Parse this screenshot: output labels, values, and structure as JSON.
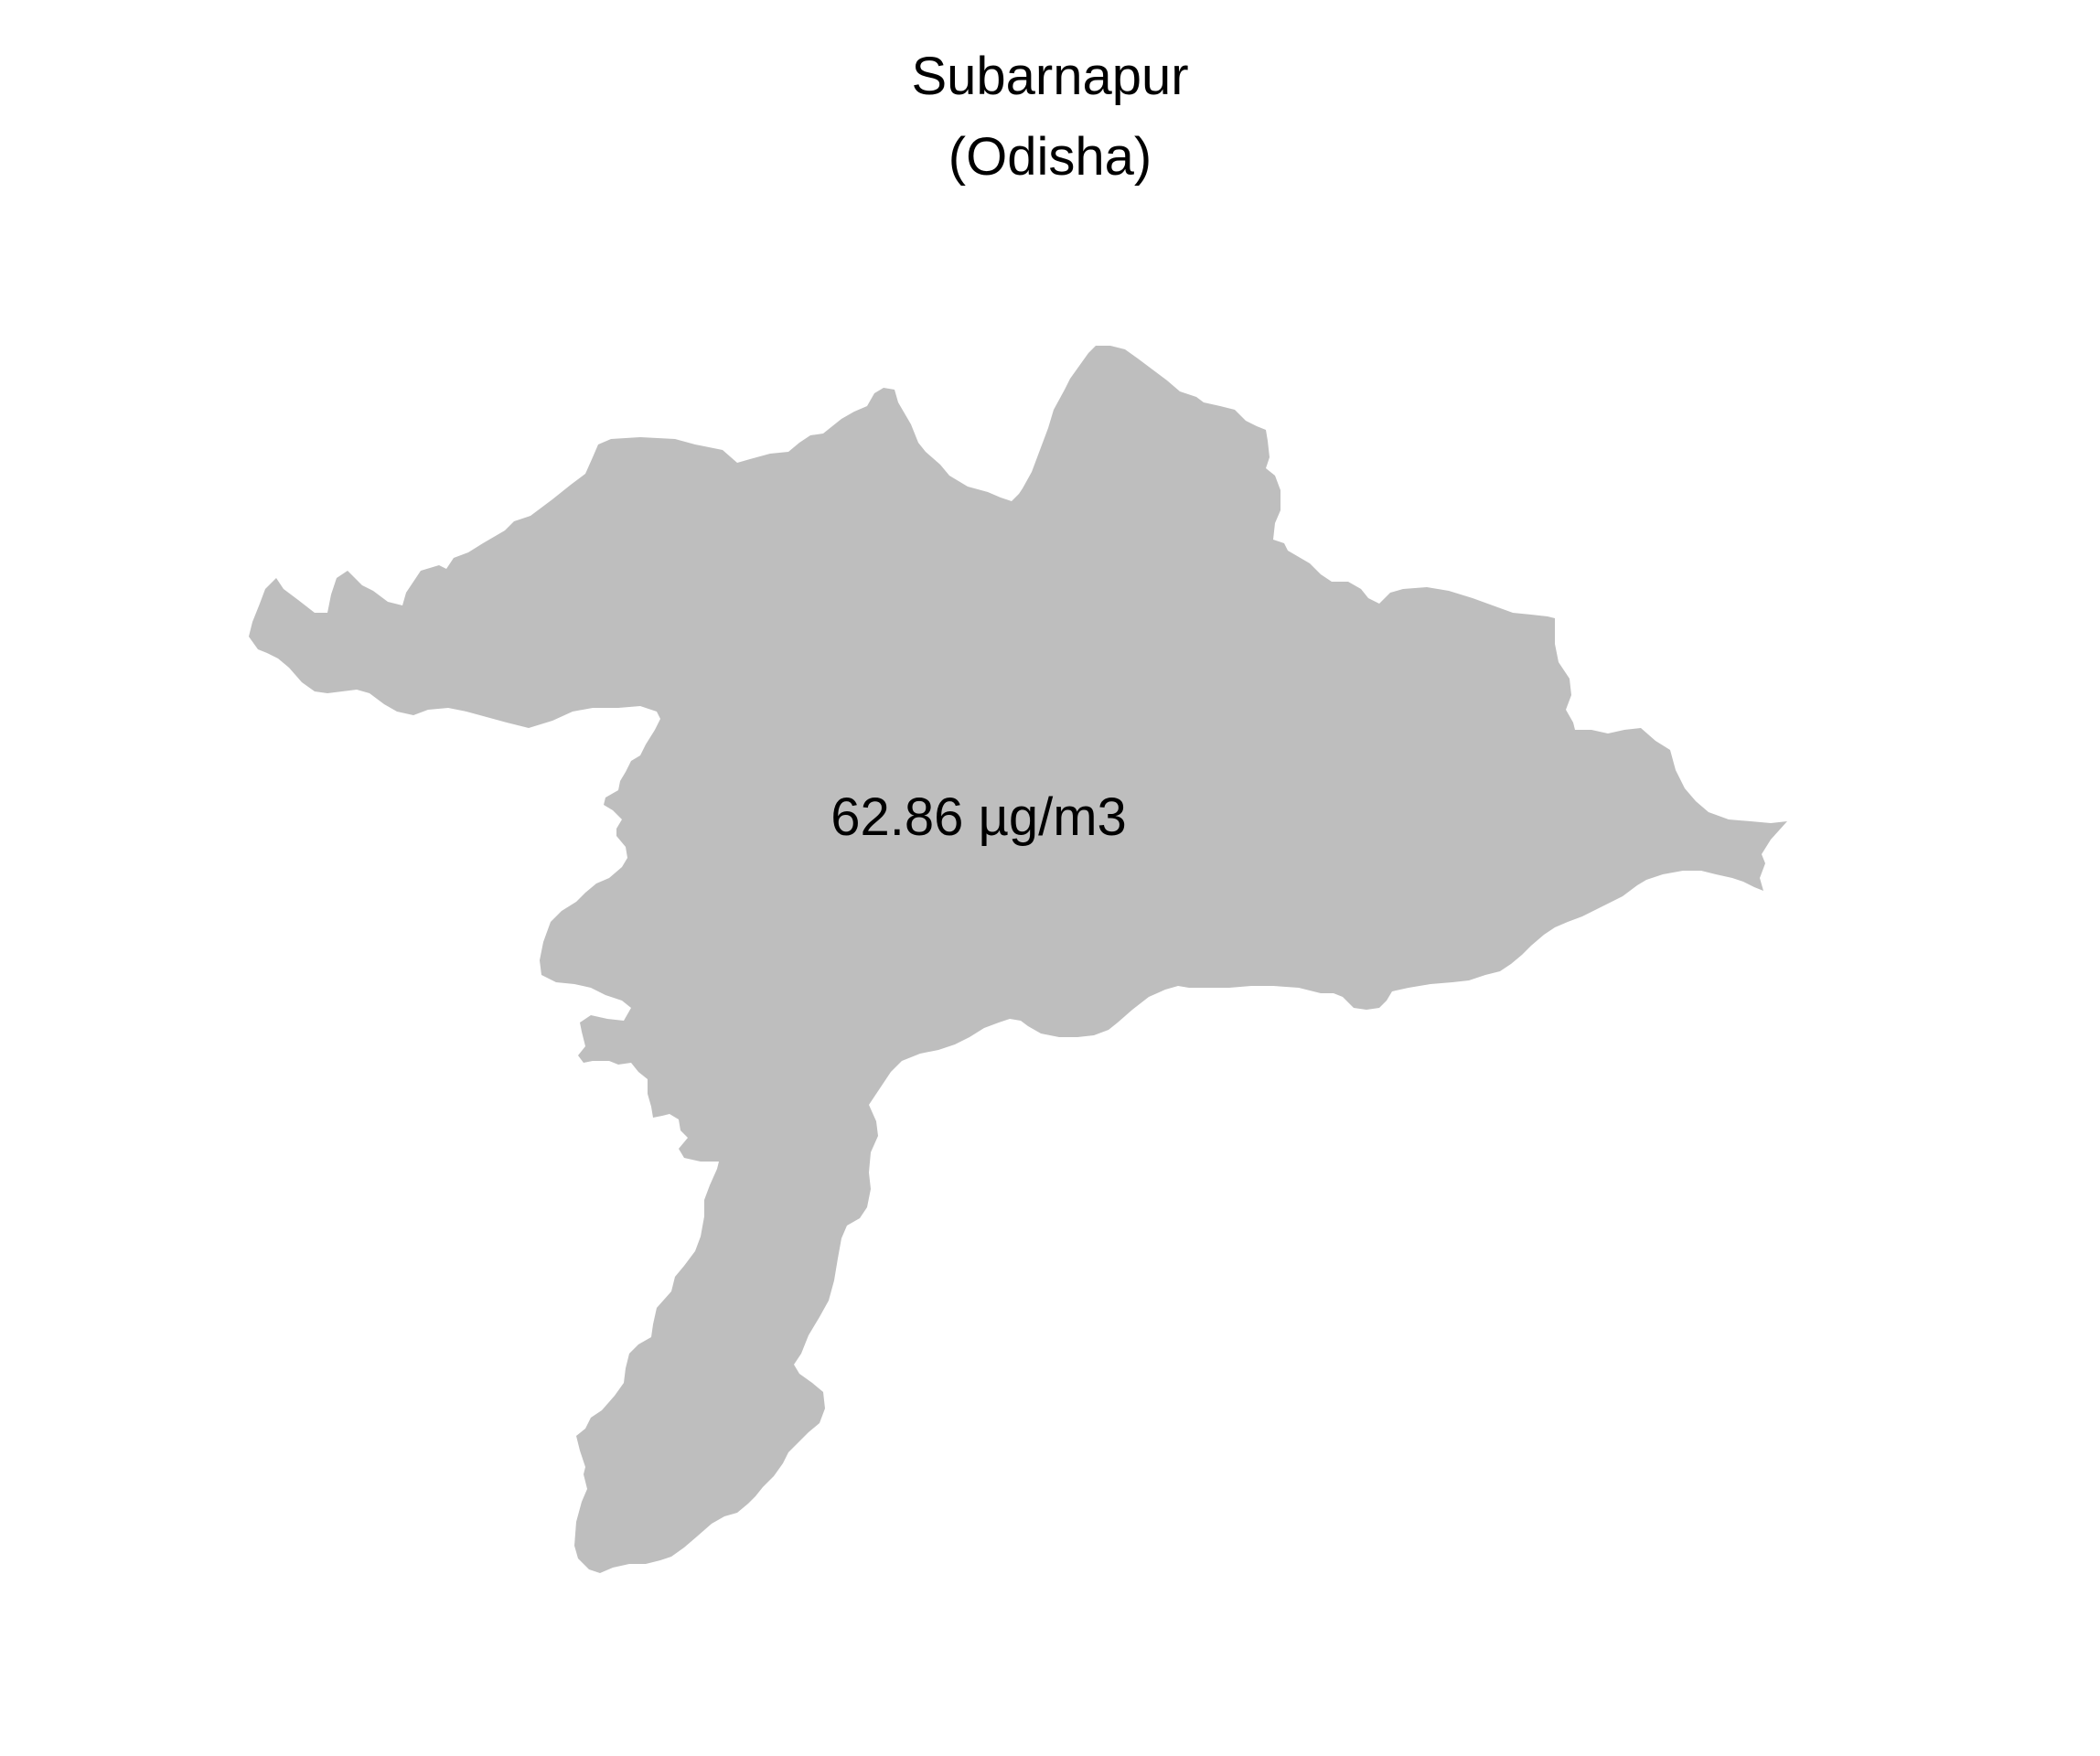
{
  "map": {
    "title": "Subarnapur",
    "subtitle": "(Odisha)",
    "value_label": "62.86 µg/m3",
    "region_fill": "#bebebe",
    "text_color": "#000000",
    "background": "#ffffff"
  }
}
